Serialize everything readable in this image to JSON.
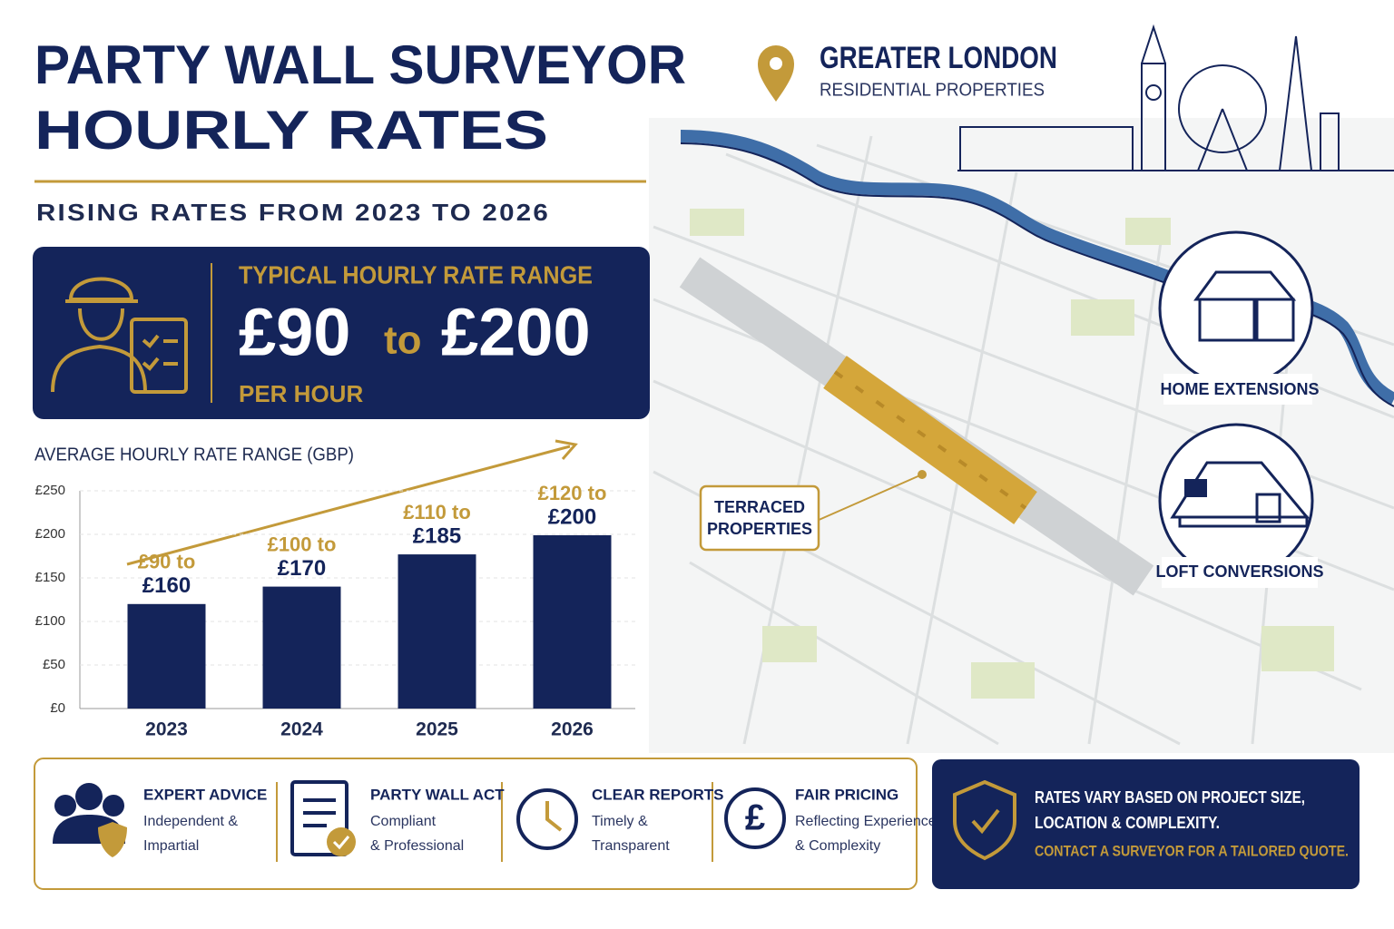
{
  "header": {
    "title_line1": "PARTY WALL SURVEYOR",
    "title_line2": "HOURLY RATES",
    "subtitle": "RISING RATES FROM 2023 TO 2026"
  },
  "rate_box": {
    "heading": "TYPICAL HOURLY RATE RANGE",
    "low": "£90",
    "connector": "to",
    "high": "£200",
    "unit": "PER HOUR"
  },
  "location": {
    "name": "GREATER LONDON",
    "subtitle": "RESIDENTIAL PROPERTIES"
  },
  "map_labels": {
    "terraced": [
      "TERRACED",
      "PROPERTIES"
    ],
    "project_types": [
      "HOME EXTENSIONS",
      "LOFT CONVERSIONS"
    ]
  },
  "features": [
    {
      "title": "EXPERT ADVICE",
      "lines": [
        "Independent &",
        "Impartial"
      ]
    },
    {
      "title": "PARTY WALL ACT",
      "lines": [
        "Compliant",
        "& Professional"
      ]
    },
    {
      "title": "CLEAR REPORTS",
      "lines": [
        "Timely &",
        "Transparent"
      ]
    },
    {
      "title": "FAIR PRICING",
      "lines": [
        "Reflecting Experience",
        "& Complexity"
      ]
    }
  ],
  "notice": {
    "lines": [
      "RATES VARY BASED ON PROJECT SIZE,",
      "LOCATION & COMPLEXITY."
    ],
    "cta": "CONTACT A SURVEYOR FOR A TAILORED QUOTE."
  },
  "chart_data": {
    "type": "bar",
    "title": "AVERAGE HOURLY RATE RANGE (GBP)",
    "categories": [
      "2023",
      "2024",
      "2025",
      "2026"
    ],
    "values": [
      120,
      140,
      177,
      199
    ],
    "color": "#14245a",
    "bar_labels": [
      {
        "low": "£90 to",
        "high": "£160"
      },
      {
        "low": "£100 to",
        "high": "£170"
      },
      {
        "low": "£110 to",
        "high": "£185"
      },
      {
        "low": "£120 to",
        "high": "£200"
      }
    ],
    "ylim": [
      0,
      250
    ],
    "yticks": [
      {
        "value": 0,
        "label": "£0"
      },
      {
        "value": 50,
        "label": "£50"
      },
      {
        "value": 100,
        "label": "£100"
      },
      {
        "value": 150,
        "label": "£150"
      },
      {
        "value": 200,
        "label": "£200"
      },
      {
        "value": 250,
        "label": "£250"
      }
    ],
    "grid": true
  }
}
